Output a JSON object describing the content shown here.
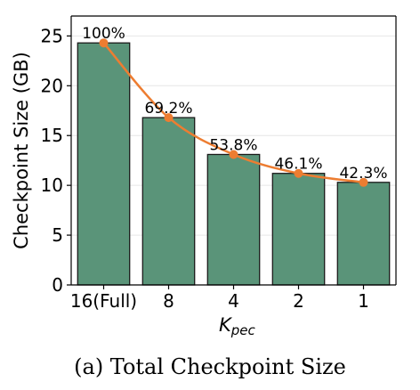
{
  "chart_data": {
    "type": "bar",
    "categories": [
      "16(Full)",
      "8",
      "4",
      "2",
      "1"
    ],
    "values": [
      24.3,
      16.8,
      13.1,
      11.2,
      10.3
    ],
    "line_values": [
      24.3,
      16.8,
      13.1,
      11.2,
      10.3
    ],
    "data_labels": [
      "100%",
      "69.2%",
      "53.8%",
      "46.1%",
      "42.3%"
    ],
    "xlabel_main": "K",
    "xlabel_sub": "pec",
    "ylabel": "Checkpoint Size (GB)",
    "ylim": [
      0,
      27
    ],
    "yticks": [
      0,
      5,
      10,
      15,
      20,
      25
    ],
    "grid": true,
    "bar_color": "#5a9479",
    "line_color": "#ed7d31"
  },
  "caption": "(a)  Total Checkpoint Size"
}
